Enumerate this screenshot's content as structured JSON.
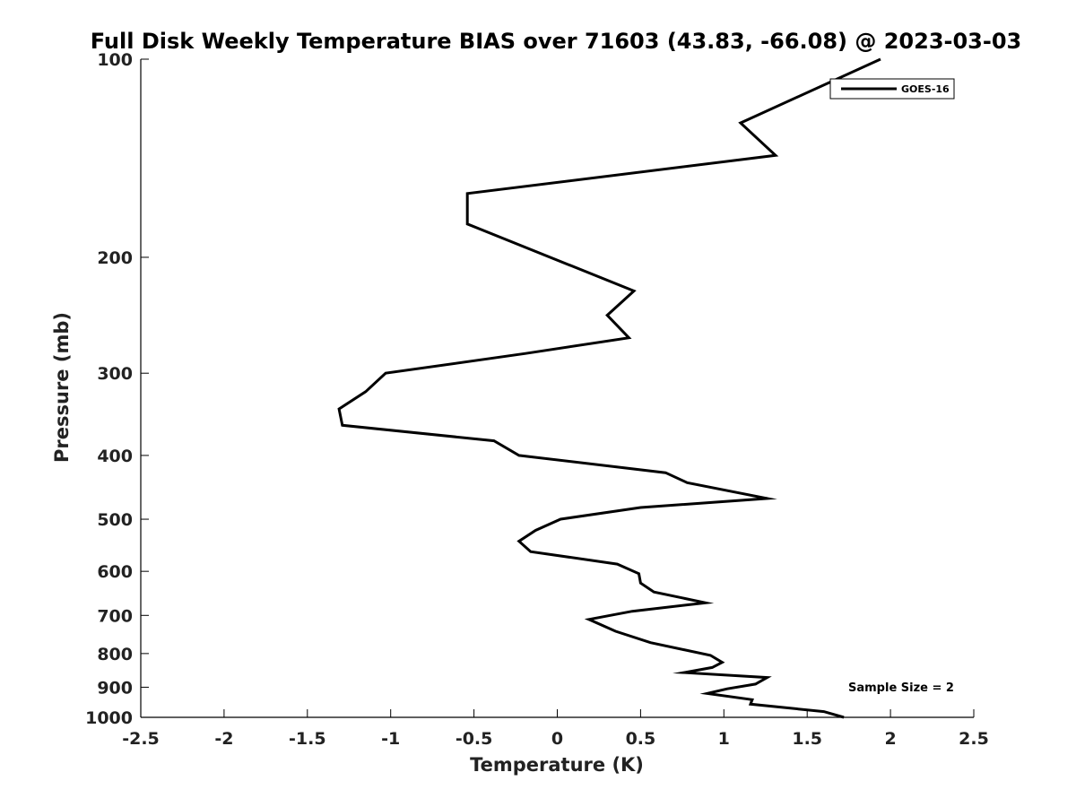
{
  "chart_data": {
    "type": "line",
    "title": "Full Disk Weekly Temperature BIAS over 71603 (43.83, -66.08) @ 2023-03-03",
    "xlabel": "Temperature (K)",
    "ylabel": "Pressure (mb)",
    "xlim": [
      -2.5,
      2.5
    ],
    "ylim": [
      100,
      1000
    ],
    "y_scale": "log",
    "y_inverted": true,
    "x_ticks": [
      "-2.5",
      "-2",
      "-1.5",
      "-1",
      "-0.5",
      "0",
      "0.5",
      "1",
      "1.5",
      "2",
      "2.5"
    ],
    "y_ticks": [
      "100",
      "200",
      "300",
      "400",
      "500",
      "600",
      "700",
      "800",
      "900",
      "1000"
    ],
    "grid": false,
    "legend_position": "top-right",
    "annotation": "Sample Size = 2",
    "series": [
      {
        "name": "GOES-16",
        "color": "#000000",
        "points": [
          [
            1.94,
            100
          ],
          [
            1.1,
            125
          ],
          [
            1.31,
            140
          ],
          [
            -0.54,
            160
          ],
          [
            -0.54,
            178
          ],
          [
            0.46,
            225
          ],
          [
            0.3,
            245
          ],
          [
            0.43,
            265
          ],
          [
            -0.19,
            280
          ],
          [
            -1.03,
            300
          ],
          [
            -1.15,
            320
          ],
          [
            -1.31,
            340
          ],
          [
            -1.29,
            360
          ],
          [
            -0.38,
            380
          ],
          [
            -0.23,
            400
          ],
          [
            0.65,
            425
          ],
          [
            0.78,
            440
          ],
          [
            1.26,
            465
          ],
          [
            0.5,
            480
          ],
          [
            0.02,
            500
          ],
          [
            -0.13,
            520
          ],
          [
            -0.23,
            540
          ],
          [
            -0.16,
            560
          ],
          [
            0.36,
            585
          ],
          [
            0.49,
            605
          ],
          [
            0.5,
            625
          ],
          [
            0.58,
            645
          ],
          [
            0.89,
            670
          ],
          [
            0.45,
            690
          ],
          [
            0.19,
            710
          ],
          [
            0.35,
            740
          ],
          [
            0.56,
            770
          ],
          [
            0.92,
            805
          ],
          [
            0.99,
            825
          ],
          [
            0.93,
            840
          ],
          [
            0.76,
            855
          ],
          [
            1.26,
            870
          ],
          [
            1.19,
            890
          ],
          [
            1.02,
            905
          ],
          [
            0.9,
            920
          ],
          [
            1.17,
            940
          ],
          [
            1.16,
            955
          ],
          [
            1.6,
            980
          ],
          [
            1.72,
            1000
          ]
        ]
      }
    ]
  }
}
